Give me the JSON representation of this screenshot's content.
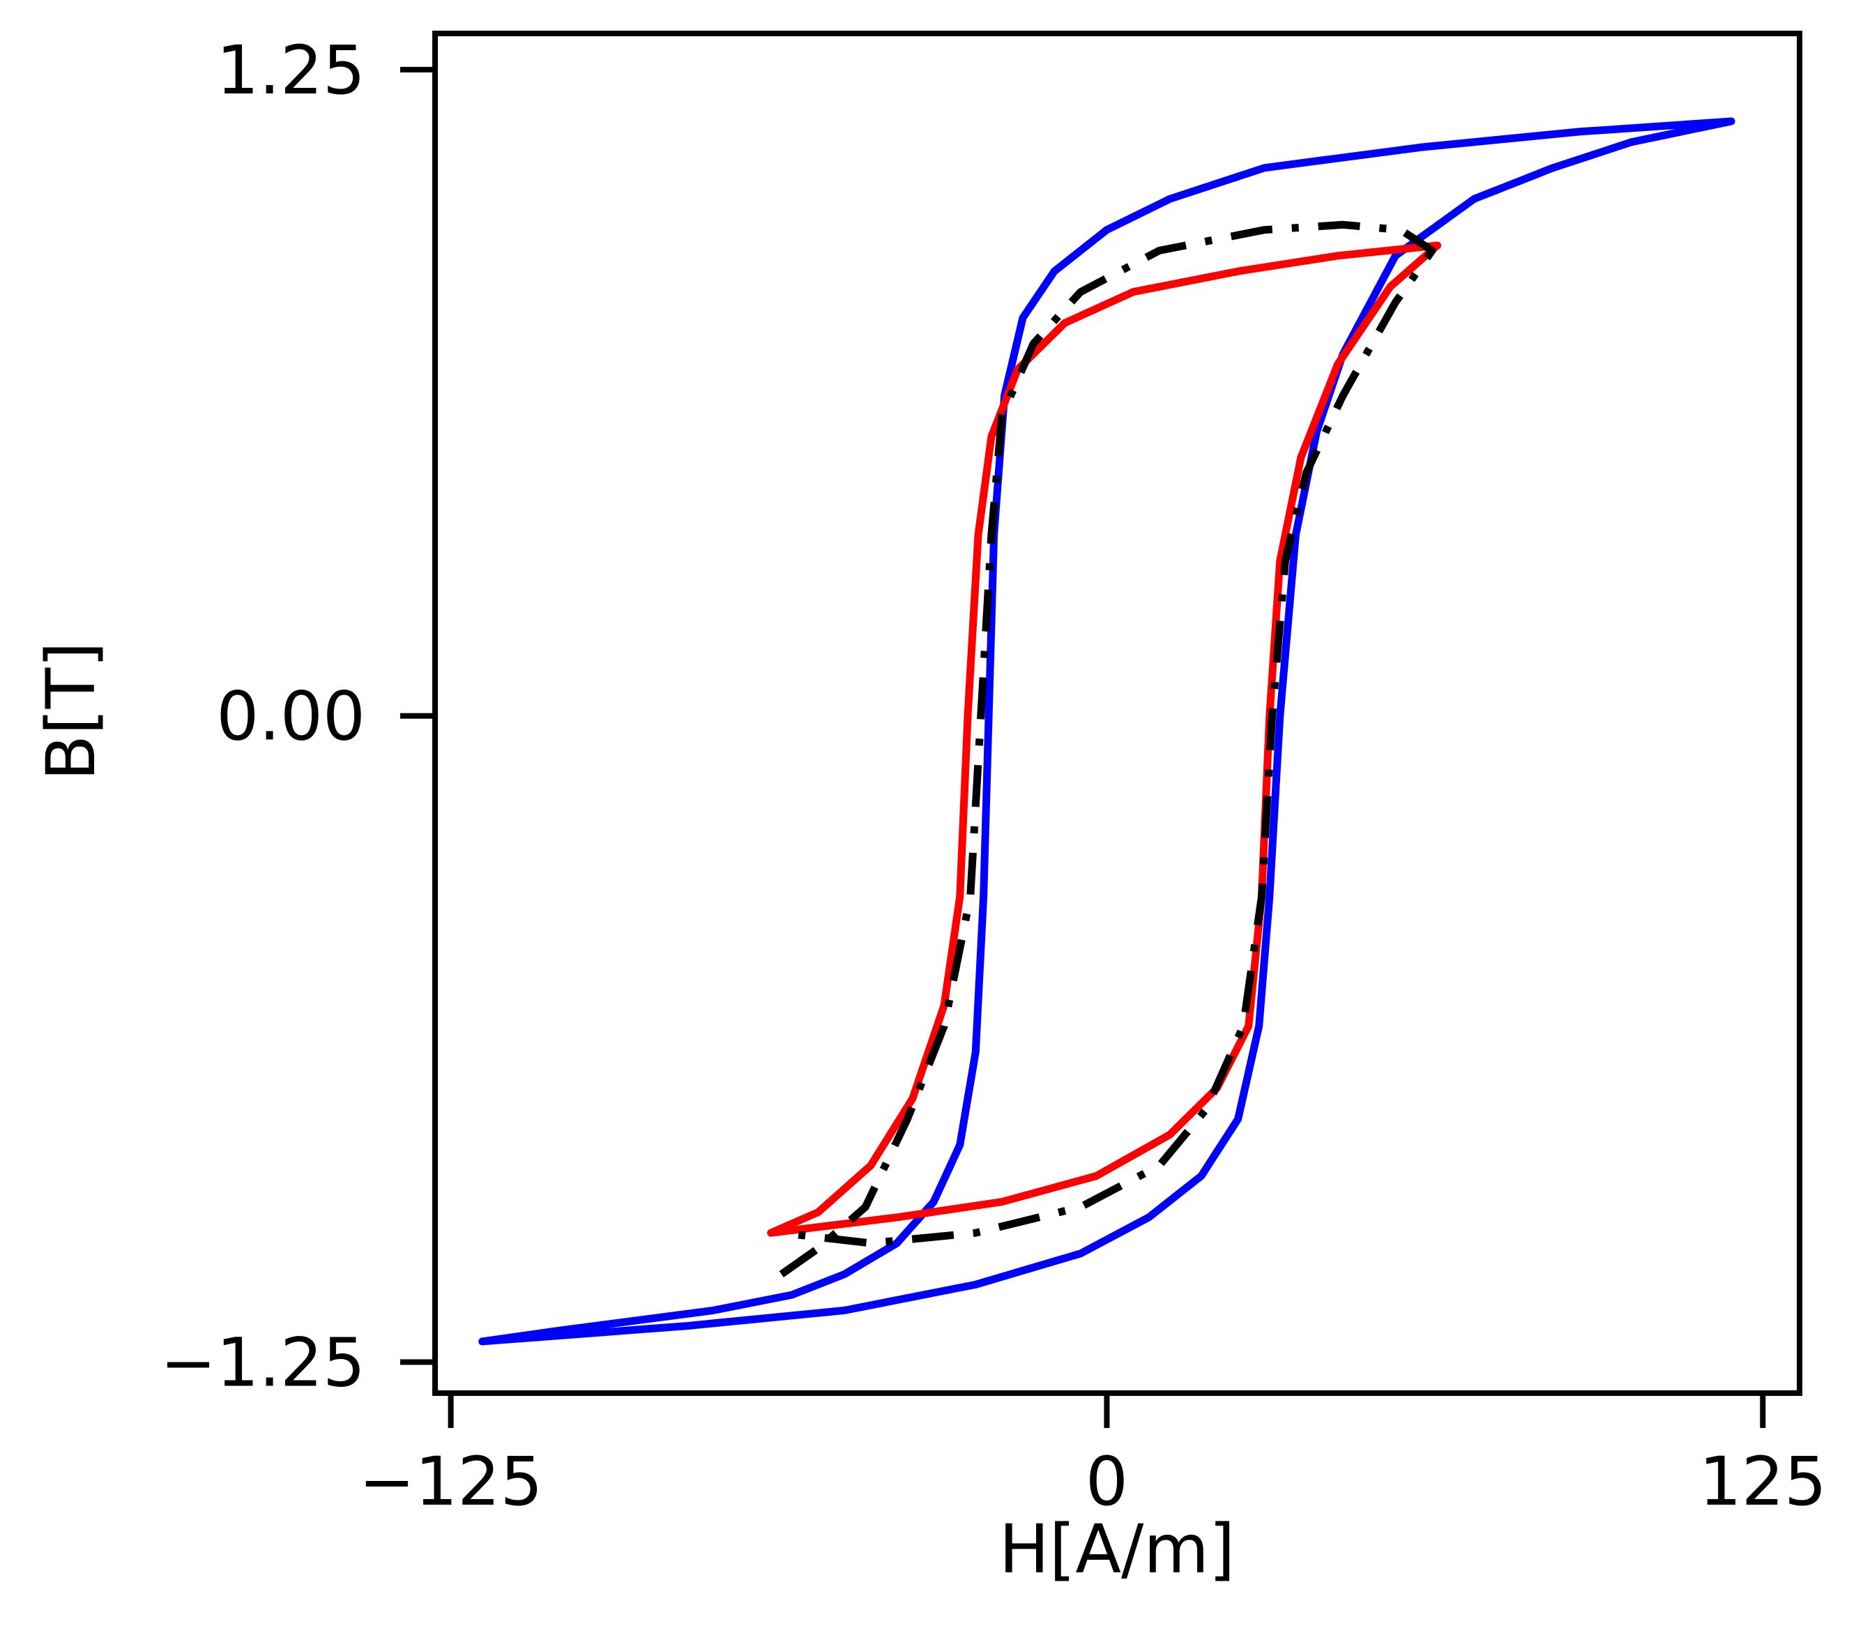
{
  "chart_data": {
    "type": "line",
    "title": "",
    "xlabel": "H[A/m]",
    "ylabel": "B[T]",
    "xlim": [
      -128,
      132
    ],
    "ylim": [
      -1.31,
      1.32
    ],
    "xticks": [
      {
        "value": -125,
        "label": "−125"
      },
      {
        "value": 0,
        "label": "0"
      },
      {
        "value": 125,
        "label": "125"
      }
    ],
    "yticks": [
      {
        "value": 1.25,
        "label": "1.25"
      },
      {
        "value": 0.0,
        "label": "0.00"
      },
      {
        "value": -1.25,
        "label": "−1.25"
      }
    ],
    "grid": false,
    "legend": "none",
    "series": [
      {
        "color": "#0000ff",
        "style": "solid",
        "points": [
          [
            -119,
            -1.21
          ],
          [
            -105,
            -1.19
          ],
          [
            -90,
            -1.17
          ],
          [
            -75,
            -1.15
          ],
          [
            -60,
            -1.12
          ],
          [
            -50,
            -1.08
          ],
          [
            -40,
            -1.02
          ],
          [
            -33,
            -0.94
          ],
          [
            -28,
            -0.83
          ],
          [
            -25,
            -0.65
          ],
          [
            -23.5,
            -0.35
          ],
          [
            -22.5,
            0.0
          ],
          [
            -21.5,
            0.35
          ],
          [
            -19.5,
            0.62
          ],
          [
            -16,
            0.77
          ],
          [
            -10,
            0.86
          ],
          [
            0,
            0.94
          ],
          [
            12,
            1.0
          ],
          [
            30,
            1.06
          ],
          [
            60,
            1.1
          ],
          [
            90,
            1.13
          ],
          [
            119,
            1.15
          ],
          [
            100,
            1.11
          ],
          [
            85,
            1.06
          ],
          [
            70,
            1.0
          ],
          [
            55,
            0.89
          ],
          [
            45,
            0.7
          ],
          [
            40,
            0.55
          ],
          [
            36,
            0.35
          ],
          [
            33,
            0.0
          ],
          [
            31,
            -0.35
          ],
          [
            29,
            -0.6
          ],
          [
            25,
            -0.78
          ],
          [
            18,
            -0.89
          ],
          [
            8,
            -0.97
          ],
          [
            -5,
            -1.04
          ],
          [
            -25,
            -1.1
          ],
          [
            -50,
            -1.15
          ],
          [
            -80,
            -1.18
          ],
          [
            -119,
            -1.21
          ]
        ]
      },
      {
        "color": "#ff0000",
        "style": "solid",
        "points": [
          [
            -64,
            -1.0
          ],
          [
            -55,
            -0.96
          ],
          [
            -45,
            -0.87
          ],
          [
            -37,
            -0.74
          ],
          [
            -31,
            -0.56
          ],
          [
            -28,
            -0.35
          ],
          [
            -26.5,
            0.0
          ],
          [
            -24.5,
            0.35
          ],
          [
            -22,
            0.54
          ],
          [
            -17,
            0.67
          ],
          [
            -8,
            0.76
          ],
          [
            5,
            0.82
          ],
          [
            25,
            0.86
          ],
          [
            44,
            0.89
          ],
          [
            63,
            0.91
          ],
          [
            54,
            0.83
          ],
          [
            44,
            0.68
          ],
          [
            37,
            0.5
          ],
          [
            33,
            0.3
          ],
          [
            31,
            0.0
          ],
          [
            29.5,
            -0.35
          ],
          [
            27,
            -0.6
          ],
          [
            21,
            -0.72
          ],
          [
            12,
            -0.81
          ],
          [
            -2,
            -0.89
          ],
          [
            -20,
            -0.94
          ],
          [
            -40,
            -0.97
          ],
          [
            -64,
            -1.0
          ]
        ]
      },
      {
        "color": "#000000",
        "style": "dashdot",
        "points": [
          [
            -62,
            -1.08
          ],
          [
            -55,
            -1.03
          ],
          [
            -46,
            -0.95
          ],
          [
            -38,
            -0.78
          ],
          [
            -31,
            -0.6
          ],
          [
            -26,
            -0.35
          ],
          [
            -24,
            0.0
          ],
          [
            -22,
            0.35
          ],
          [
            -20,
            0.58
          ],
          [
            -14,
            0.72
          ],
          [
            -5,
            0.82
          ],
          [
            10,
            0.9
          ],
          [
            30,
            0.94
          ],
          [
            45,
            0.95
          ],
          [
            56,
            0.94
          ],
          [
            62,
            0.9
          ],
          [
            55,
            0.8
          ],
          [
            45,
            0.62
          ],
          [
            38,
            0.47
          ],
          [
            34,
            0.3
          ],
          [
            31.5,
            0.0
          ],
          [
            29.5,
            -0.35
          ],
          [
            26,
            -0.6
          ],
          [
            19,
            -0.76
          ],
          [
            10,
            -0.87
          ],
          [
            -5,
            -0.95
          ],
          [
            -25,
            -1.0
          ],
          [
            -45,
            -1.02
          ],
          [
            -62,
            -1.0
          ]
        ]
      }
    ]
  }
}
